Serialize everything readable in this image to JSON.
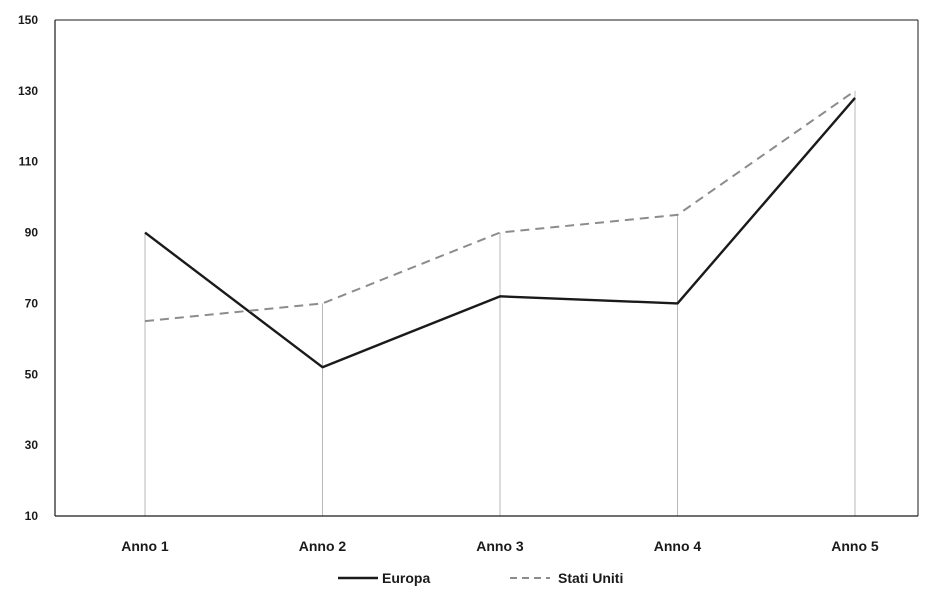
{
  "chart_data": {
    "type": "line",
    "categories": [
      "Anno 1",
      "Anno 2",
      "Anno 3",
      "Anno 4",
      "Anno 5"
    ],
    "series": [
      {
        "name": "Europa",
        "values": [
          90,
          52,
          72,
          70,
          128
        ],
        "style": "solid",
        "color": "#1a1a1a"
      },
      {
        "name": "Stati Uniti",
        "values": [
          65,
          70,
          90,
          95,
          130
        ],
        "style": "dashed",
        "color": "#8c8c8c"
      }
    ],
    "title": "",
    "xlabel": "",
    "ylabel": "",
    "ylim": [
      10,
      150
    ],
    "yticks": [
      10,
      30,
      50,
      70,
      90,
      110,
      130,
      150
    ],
    "drop_lines": true,
    "grid": false,
    "legend_position": "bottom-center"
  }
}
